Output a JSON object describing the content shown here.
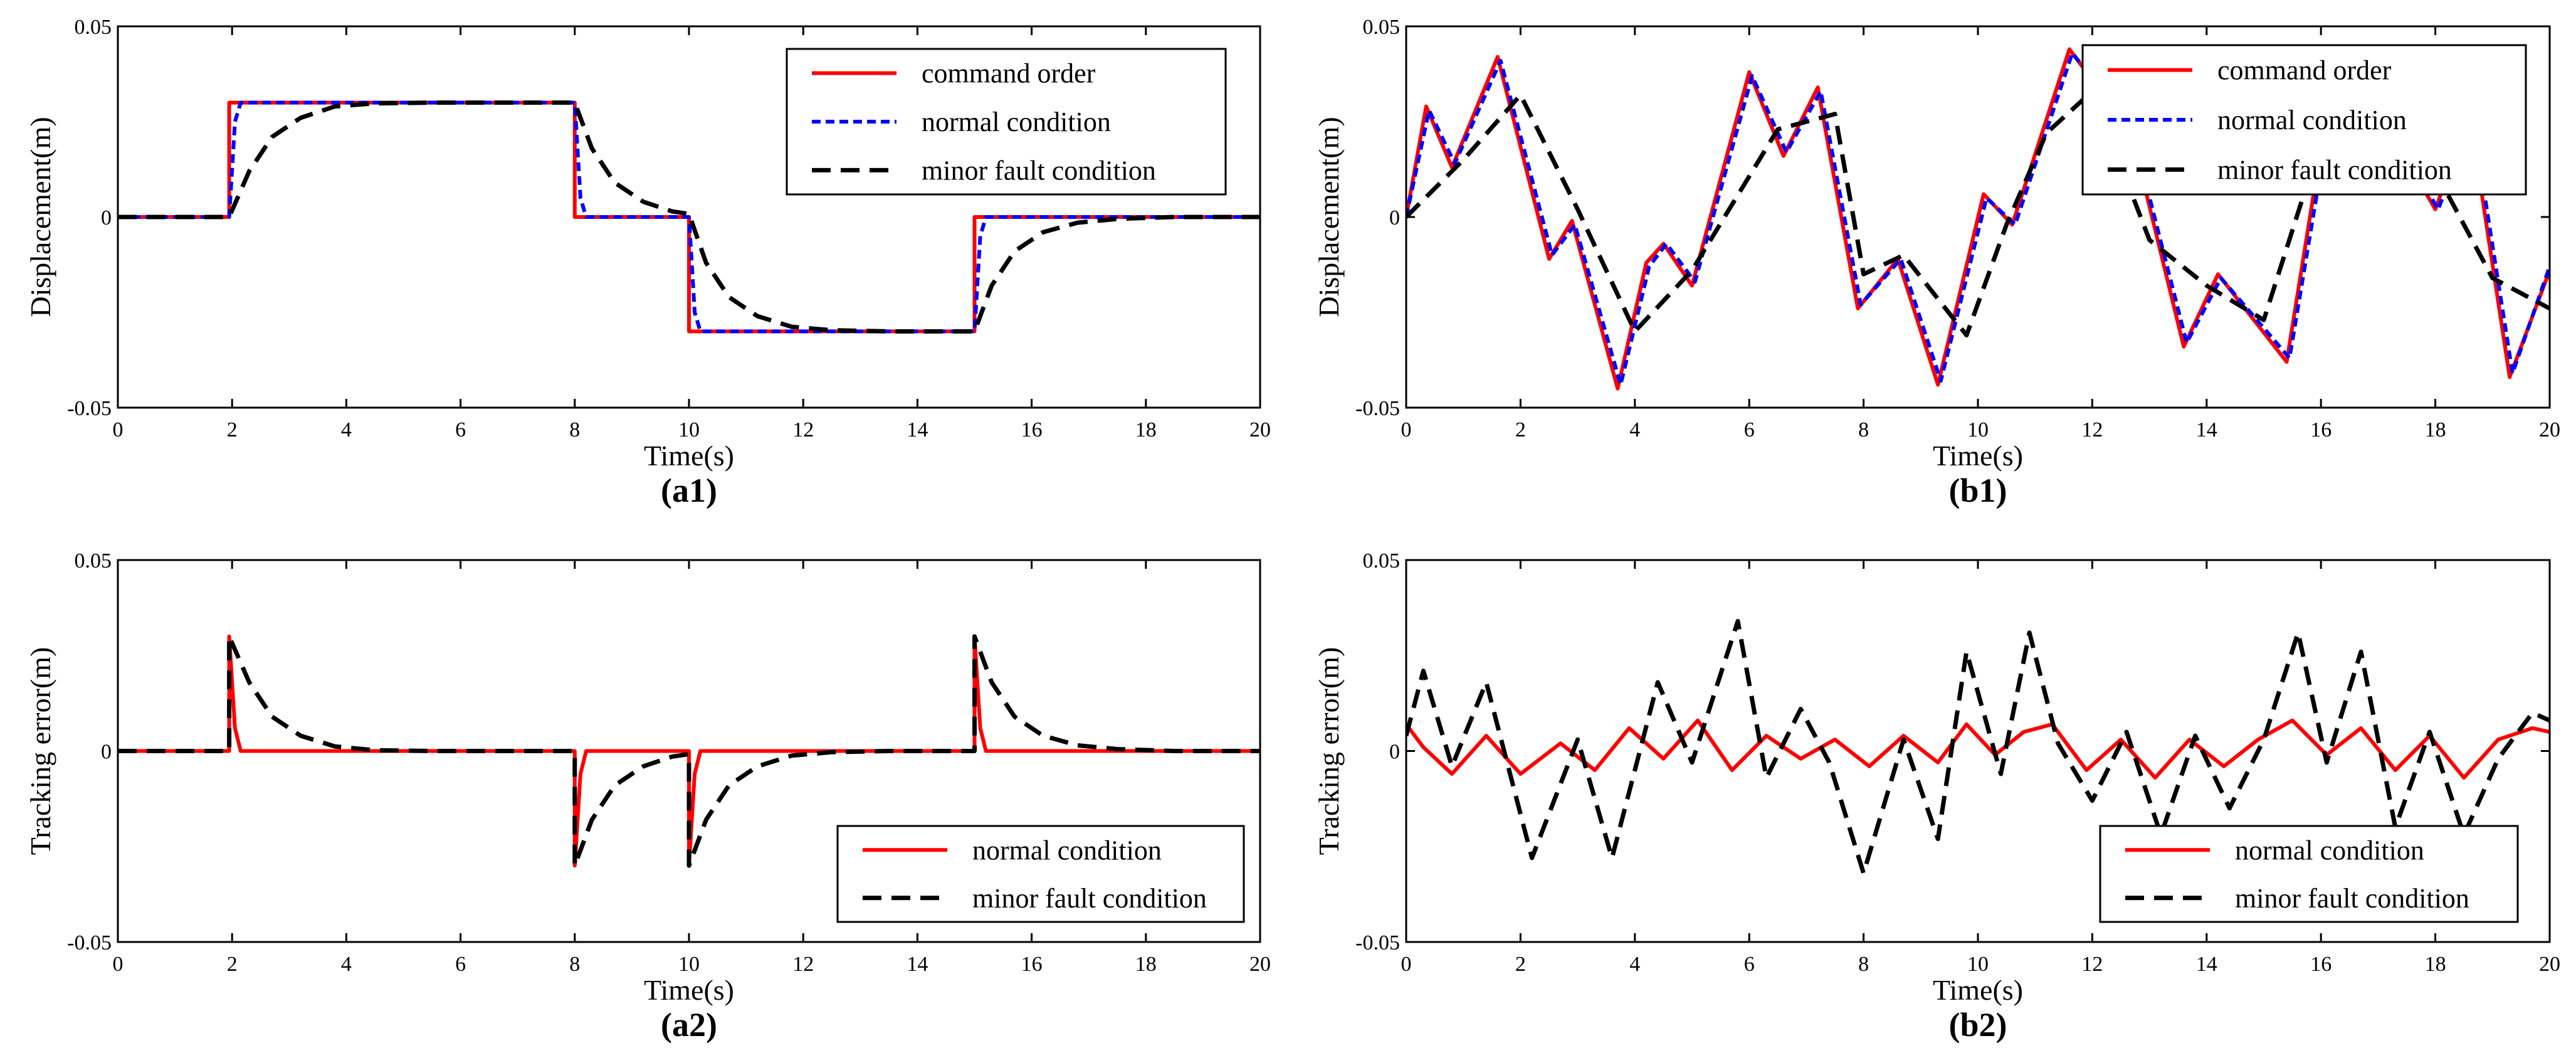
{
  "figure": {
    "panels": [
      {
        "id": "a1",
        "caption": "(a1)",
        "xlabel": "Time(s)",
        "ylabel": "Displacement(m)",
        "xlim": [
          0,
          20
        ],
        "ylim": [
          -0.05,
          0.05
        ],
        "xticks": [
          0,
          2,
          4,
          6,
          8,
          10,
          12,
          14,
          16,
          18,
          20
        ],
        "yticks": [
          -0.05,
          0,
          0.05
        ],
        "ytick_labels": [
          "-0.05",
          "0",
          "0.05"
        ],
        "legend": [
          {
            "label": "command order",
            "color": "#ff0000",
            "dash": "solid"
          },
          {
            "label": "normal condition",
            "color": "#0000ff",
            "dash": "dotted"
          },
          {
            "label": "minor fault condition",
            "color": "#000000",
            "dash": "dashed"
          }
        ]
      },
      {
        "id": "b1",
        "caption": "(b1)",
        "xlabel": "Time(s)",
        "ylabel": "Displacement(m)",
        "xlim": [
          0,
          20
        ],
        "ylim": [
          -0.05,
          0.05
        ],
        "xticks": [
          0,
          2,
          4,
          6,
          8,
          10,
          12,
          14,
          16,
          18,
          20
        ],
        "yticks": [
          -0.05,
          0,
          0.05
        ],
        "ytick_labels": [
          "-0.05",
          "0",
          "0.05"
        ],
        "legend": [
          {
            "label": "command order",
            "color": "#ff0000",
            "dash": "solid"
          },
          {
            "label": "normal condition",
            "color": "#0000ff",
            "dash": "dotted"
          },
          {
            "label": "minor fault condition",
            "color": "#000000",
            "dash": "dashed"
          }
        ]
      },
      {
        "id": "a2",
        "caption": "(a2)",
        "xlabel": "Time(s)",
        "ylabel": "Tracking error(m)",
        "xlim": [
          0,
          20
        ],
        "ylim": [
          -0.05,
          0.05
        ],
        "xticks": [
          0,
          2,
          4,
          6,
          8,
          10,
          12,
          14,
          16,
          18,
          20
        ],
        "yticks": [
          -0.05,
          0,
          0.05
        ],
        "ytick_labels": [
          "-0.05",
          "0",
          "0.05"
        ],
        "legend": [
          {
            "label": "normal condition",
            "color": "#ff0000",
            "dash": "solid"
          },
          {
            "label": "minor fault condition",
            "color": "#000000",
            "dash": "dashed"
          }
        ]
      },
      {
        "id": "b2",
        "caption": "(b2)",
        "xlabel": "Time(s)",
        "ylabel": "Tracking error(m)",
        "xlim": [
          0,
          20
        ],
        "ylim": [
          -0.05,
          0.05
        ],
        "xticks": [
          0,
          2,
          4,
          6,
          8,
          10,
          12,
          14,
          16,
          18,
          20
        ],
        "yticks": [
          -0.05,
          0,
          0.05
        ],
        "ytick_labels": [
          "-0.05",
          "0",
          "0.05"
        ],
        "legend": [
          {
            "label": "normal condition",
            "color": "#ff0000",
            "dash": "solid"
          },
          {
            "label": "minor fault condition",
            "color": "#000000",
            "dash": "dashed"
          }
        ]
      }
    ]
  },
  "chart_data": [
    {
      "id": "a1",
      "type": "line",
      "title": "(a1)",
      "xlabel": "Time(s)",
      "ylabel": "Displacement(m)",
      "xlim": [
        0,
        20
      ],
      "ylim": [
        -0.05,
        0.05
      ],
      "grid": false,
      "legend_position": "top-right",
      "series": [
        {
          "name": "command order",
          "color": "#ff0000",
          "x": [
            0,
            1.95,
            1.95,
            8,
            8,
            10,
            10,
            15,
            15,
            20
          ],
          "y": [
            0,
            0,
            0.03,
            0.03,
            0,
            0,
            -0.03,
            -0.03,
            0,
            0
          ]
        },
        {
          "name": "normal condition",
          "color": "#0000ff",
          "x": [
            0,
            1.95,
            2.05,
            2.15,
            8,
            8.1,
            8.2,
            10,
            10.1,
            10.2,
            15,
            15.1,
            15.2,
            20
          ],
          "y": [
            0,
            0,
            0.025,
            0.03,
            0.03,
            0.005,
            0,
            0,
            -0.025,
            -0.03,
            -0.03,
            -0.005,
            0,
            0
          ]
        },
        {
          "name": "minor fault condition",
          "color": "#000000",
          "x": [
            0,
            1.95,
            2.3,
            2.7,
            3.2,
            3.8,
            4.5,
            5.5,
            8,
            8.3,
            8.7,
            9.2,
            9.7,
            10,
            10.3,
            10.7,
            11.2,
            11.8,
            12.5,
            13.5,
            15,
            15.3,
            15.7,
            16.2,
            16.8,
            17.5,
            18.5,
            20
          ],
          "y": [
            0,
            0,
            0.012,
            0.021,
            0.026,
            0.029,
            0.0298,
            0.03,
            0.03,
            0.018,
            0.009,
            0.004,
            0.0015,
            0.0008,
            -0.012,
            -0.021,
            -0.026,
            -0.0288,
            -0.0297,
            -0.03,
            -0.03,
            -0.018,
            -0.009,
            -0.004,
            -0.0015,
            -0.0005,
            0,
            0
          ]
        }
      ]
    },
    {
      "id": "b1",
      "type": "line",
      "title": "(b1)",
      "xlabel": "Time(s)",
      "ylabel": "Displacement(m)",
      "xlim": [
        0,
        20
      ],
      "ylim": [
        -0.05,
        0.05
      ],
      "grid": false,
      "legend_position": "top-right",
      "series": [
        {
          "name": "command order",
          "color": "#ff0000",
          "x": [
            0,
            0.35,
            0.8,
            1.6,
            2.5,
            2.9,
            3.7,
            4.2,
            4.5,
            5.0,
            6.0,
            6.6,
            7.2,
            7.9,
            8.6,
            9.3,
            10.1,
            10.6,
            11.6,
            12.3,
            12.8,
            13.6,
            14.2,
            15.4,
            16.0,
            17.0,
            18.0,
            18.6,
            19.3,
            20.0
          ],
          "y": [
            0,
            0.029,
            0.013,
            0.042,
            -0.011,
            -0.001,
            -0.045,
            -0.012,
            -0.007,
            -0.018,
            0.038,
            0.016,
            0.034,
            -0.024,
            -0.011,
            -0.044,
            0.006,
            -0.002,
            0.044,
            0.03,
            0.015,
            -0.034,
            -0.015,
            -0.038,
            0.018,
            0.028,
            0.002,
            0.027,
            -0.042,
            -0.014
          ]
        },
        {
          "name": "normal condition",
          "color": "#0000ff",
          "x": [
            0,
            0.4,
            0.85,
            1.65,
            2.55,
            2.95,
            3.75,
            4.25,
            4.55,
            5.05,
            6.05,
            6.65,
            7.25,
            7.95,
            8.65,
            9.35,
            10.15,
            10.65,
            11.65,
            12.35,
            12.85,
            13.65,
            14.25,
            15.45,
            16.05,
            17.05,
            18.05,
            18.65,
            19.35,
            20.0
          ],
          "y": [
            0,
            0.028,
            0.014,
            0.041,
            -0.01,
            -0.002,
            -0.044,
            -0.013,
            -0.007,
            -0.017,
            0.037,
            0.017,
            0.033,
            -0.023,
            -0.011,
            -0.043,
            0.005,
            -0.002,
            0.043,
            0.03,
            0.014,
            -0.033,
            -0.016,
            -0.037,
            0.017,
            0.027,
            0.002,
            0.026,
            -0.041,
            -0.013
          ]
        },
        {
          "name": "minor fault condition",
          "color": "#000000",
          "x": [
            0,
            1.0,
            2.0,
            3.0,
            4.0,
            5.0,
            6.5,
            7.5,
            8.0,
            8.7,
            9.8,
            10.5,
            11.2,
            12.0,
            13.0,
            14.0,
            15.0,
            16.0,
            17.5,
            19.0,
            20.0
          ],
          "y": [
            0,
            0.015,
            0.032,
            0.002,
            -0.03,
            -0.014,
            0.023,
            0.027,
            -0.015,
            -0.01,
            -0.031,
            -0.002,
            0.022,
            0.033,
            -0.006,
            -0.018,
            -0.027,
            0.02,
            0.026,
            -0.016,
            -0.024
          ]
        }
      ]
    },
    {
      "id": "a2",
      "type": "line",
      "title": "(a2)",
      "xlabel": "Time(s)",
      "ylabel": "Tracking error(m)",
      "xlim": [
        0,
        20
      ],
      "ylim": [
        -0.05,
        0.05
      ],
      "grid": false,
      "legend_position": "bottom-right",
      "series": [
        {
          "name": "normal condition",
          "color": "#ff0000",
          "x": [
            0,
            1.95,
            1.95,
            2.05,
            2.15,
            8,
            8,
            8.1,
            8.2,
            10,
            10,
            10.1,
            10.2,
            15,
            15,
            15.1,
            15.2,
            20
          ],
          "y": [
            0,
            0,
            0.03,
            0.006,
            0,
            0,
            -0.03,
            -0.006,
            0,
            0,
            -0.03,
            -0.006,
            0,
            0,
            0.03,
            0.006,
            0,
            0
          ]
        },
        {
          "name": "minor fault condition",
          "color": "#000000",
          "x": [
            0,
            1.95,
            1.95,
            2.3,
            2.7,
            3.2,
            3.8,
            4.5,
            5.5,
            8,
            8,
            8.3,
            8.7,
            9.2,
            9.7,
            10,
            10,
            10.3,
            10.7,
            11.2,
            11.8,
            12.5,
            13.5,
            15,
            15,
            15.3,
            15.7,
            16.2,
            16.8,
            17.5,
            18.5,
            20
          ],
          "y": [
            0,
            0,
            0.03,
            0.018,
            0.009,
            0.004,
            0.0012,
            0.0002,
            0,
            0,
            -0.03,
            -0.018,
            -0.009,
            -0.004,
            -0.0015,
            -0.0008,
            -0.03,
            -0.018,
            -0.009,
            -0.004,
            -0.0012,
            -0.0003,
            0,
            0,
            0.03,
            0.018,
            0.009,
            0.004,
            0.0015,
            0.0005,
            0,
            0
          ]
        }
      ]
    },
    {
      "id": "b2",
      "type": "line",
      "title": "(b2)",
      "xlabel": "Time(s)",
      "ylabel": "Tracking error(m)",
      "xlim": [
        0,
        20
      ],
      "ylim": [
        -0.05,
        0.05
      ],
      "grid": false,
      "legend_position": "bottom-right",
      "series": [
        {
          "name": "normal condition",
          "color": "#ff0000",
          "x": [
            0,
            0.3,
            0.8,
            1.4,
            2.0,
            2.7,
            3.3,
            3.9,
            4.5,
            5.1,
            5.7,
            6.3,
            6.9,
            7.5,
            8.1,
            8.7,
            9.3,
            9.8,
            10.3,
            10.8,
            11.3,
            11.9,
            12.5,
            13.1,
            13.7,
            14.3,
            14.9,
            15.5,
            16.1,
            16.7,
            17.3,
            17.9,
            18.5,
            19.1,
            19.7,
            20.0
          ],
          "y": [
            0.007,
            0.001,
            -0.006,
            0.004,
            -0.006,
            0.002,
            -0.005,
            0.006,
            -0.002,
            0.008,
            -0.005,
            0.004,
            -0.002,
            0.003,
            -0.004,
            0.004,
            -0.003,
            0.007,
            -0.001,
            0.005,
            0.007,
            -0.005,
            0.003,
            -0.007,
            0.003,
            -0.004,
            0.003,
            0.008,
            -0.001,
            0.006,
            -0.005,
            0.004,
            -0.007,
            0.003,
            0.006,
            0.005
          ]
        },
        {
          "name": "minor fault condition",
          "color": "#000000",
          "x": [
            0,
            0.3,
            0.8,
            1.4,
            2.2,
            3.0,
            3.6,
            4.4,
            5.0,
            5.8,
            6.3,
            6.9,
            7.4,
            8.0,
            8.7,
            9.3,
            9.8,
            10.4,
            10.9,
            11.4,
            12.0,
            12.6,
            13.2,
            13.8,
            14.4,
            15.0,
            15.6,
            16.1,
            16.7,
            17.3,
            17.9,
            18.5,
            19.1,
            19.7,
            20.0
          ],
          "y": [
            0.004,
            0.021,
            -0.004,
            0.018,
            -0.028,
            0.003,
            -0.028,
            0.018,
            -0.003,
            0.034,
            -0.007,
            0.011,
            -0.003,
            -0.032,
            0.003,
            -0.023,
            0.026,
            -0.006,
            0.031,
            0.002,
            -0.013,
            0.005,
            -0.022,
            0.004,
            -0.015,
            0.003,
            0.031,
            -0.003,
            0.026,
            -0.02,
            0.005,
            -0.022,
            -0.002,
            0.01,
            0.008
          ]
        }
      ]
    }
  ]
}
